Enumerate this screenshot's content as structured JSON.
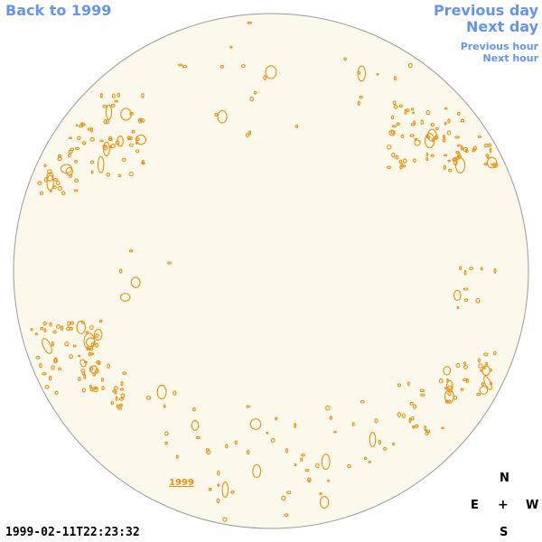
{
  "nav": {
    "back_label": "Back to 1999",
    "prev_day_label": "Previous day",
    "next_day_label": "Next day",
    "prev_hour_label": "Previous hour",
    "next_hour_label": "Next hour"
  },
  "sun": {
    "year_label": "1999",
    "disk_color": "#fdf8ec",
    "contour_color": "#e8900a"
  },
  "compass": {
    "north": "N",
    "east": "E",
    "center": "+",
    "west": "W",
    "south": "S"
  },
  "timestamp": "1999-02-11T22:23:32",
  "colors": {
    "link": "#6495ed",
    "text": "#000000"
  }
}
